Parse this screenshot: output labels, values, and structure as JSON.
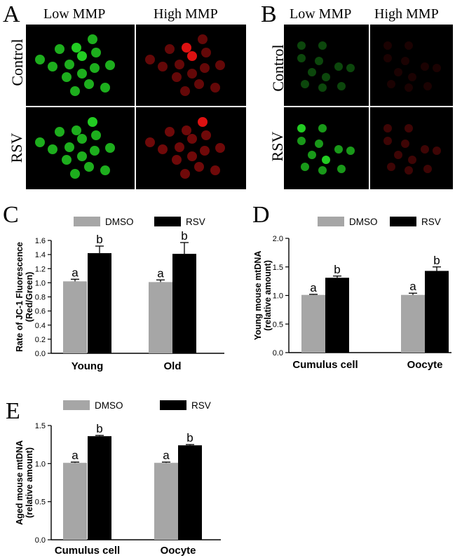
{
  "panels": {
    "A": {
      "letter": "A",
      "column_labels": [
        "Low MMP",
        "High MMP"
      ],
      "row_labels": [
        "Control",
        "RSV"
      ]
    },
    "B": {
      "letter": "B",
      "column_labels": [
        "Low MMP",
        "High MMP"
      ],
      "row_labels": [
        "Control",
        "RSV"
      ]
    }
  },
  "colors": {
    "dmso": "#a6a6a6",
    "rsv": "#000000",
    "low_mmp_green": "#22cc22",
    "high_mmp_red": "#dd1111"
  },
  "chart_data": [
    {
      "panel": "C",
      "type": "bar",
      "categories": [
        "Young",
        "Old"
      ],
      "series": [
        {
          "name": "DMSO",
          "values": [
            1.02,
            1.01
          ],
          "errors": [
            0.03,
            0.03
          ],
          "labels": [
            "a",
            "a"
          ]
        },
        {
          "name": "RSV",
          "values": [
            1.42,
            1.41
          ],
          "errors": [
            0.1,
            0.16
          ],
          "labels": [
            "b",
            "b"
          ]
        }
      ],
      "ylabel": "Rate of JC-1 Fluorescence (Red/Green)",
      "ylim": [
        0,
        1.6
      ],
      "yticks": [
        0.0,
        0.2,
        0.4,
        0.6,
        0.8,
        1.0,
        1.2,
        1.4,
        1.6
      ],
      "ytick_labels": [
        "0.0",
        "0.2",
        "0.4",
        "0.6",
        "0.8",
        "1.0",
        "1.2",
        "1.4",
        "1.6"
      ],
      "legend": "top"
    },
    {
      "panel": "D",
      "type": "bar",
      "categories": [
        "Cumulus cell",
        "Oocyte"
      ],
      "series": [
        {
          "name": "DMSO",
          "values": [
            1.01,
            1.01
          ],
          "errors": [
            0.01,
            0.03
          ],
          "labels": [
            "a",
            "a"
          ]
        },
        {
          "name": "RSV",
          "values": [
            1.31,
            1.43
          ],
          "errors": [
            0.03,
            0.07
          ],
          "labels": [
            "b",
            "b"
          ]
        }
      ],
      "ylabel": "Young mouse mtDNA (relative amount)",
      "ylim": [
        0,
        2.0
      ],
      "yticks": [
        0.0,
        0.5,
        1.0,
        1.5,
        2.0
      ],
      "ytick_labels": [
        "0.0",
        "0.5",
        "1.0",
        "1.5",
        "2.0"
      ],
      "legend": "top"
    },
    {
      "panel": "E",
      "type": "bar",
      "categories": [
        "Cumulus cell",
        "Oocyte"
      ],
      "series": [
        {
          "name": "DMSO",
          "values": [
            1.01,
            1.01
          ],
          "errors": [
            0.01,
            0.01
          ],
          "labels": [
            "a",
            "a"
          ]
        },
        {
          "name": "RSV",
          "values": [
            1.36,
            1.24
          ],
          "errors": [
            0.01,
            0.01
          ],
          "labels": [
            "b",
            "b"
          ]
        }
      ],
      "ylabel": "Aged mouse mtDNA (relative amount)",
      "ylim": [
        0,
        1.5
      ],
      "yticks": [
        0.0,
        0.5,
        1.0,
        1.5
      ],
      "ytick_labels": [
        "0.0",
        "0.5",
        "1.0",
        "1.5"
      ],
      "legend": "top"
    }
  ]
}
